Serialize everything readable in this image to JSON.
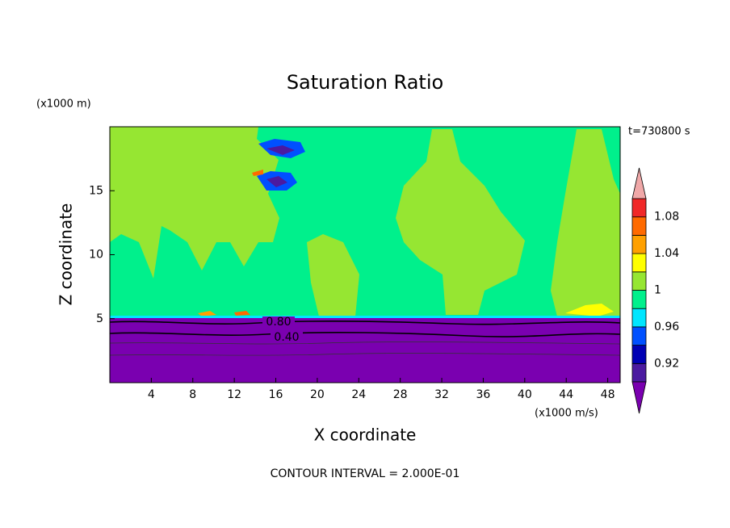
{
  "chart_data": {
    "type": "contour",
    "title": "Saturation Ratio",
    "y_unit_label": "(x1000 m)",
    "x_unit_label": "(x1000 m/s)",
    "time_label": "t=730800 s",
    "xlabel": "X coordinate",
    "ylabel": "Z coordinate",
    "footer": "CONTOUR INTERVAL = 2.000E-01",
    "xlim": [
      0,
      49.2
    ],
    "ylim": [
      0,
      20
    ],
    "xticks": [
      4,
      8,
      12,
      16,
      20,
      24,
      28,
      32,
      36,
      40,
      44,
      48
    ],
    "yticks": [
      5,
      10,
      15
    ],
    "levels": [
      0.9,
      0.92,
      0.94,
      0.96,
      0.98,
      1,
      1.02,
      1.04,
      1.06,
      1.08,
      1.1
    ],
    "level_colors": [
      "#4b1aa0",
      "#0000b4",
      "#0050ff",
      "#00e6ff",
      "#00f08c",
      "#96e632",
      "#ffff00",
      "#ffa000",
      "#ff6a00",
      "#f02828"
    ],
    "under_color": "#7a00b0",
    "over_color": "#f0a8a8",
    "colorbar_ticks": [
      0.92,
      0.96,
      1,
      1.04,
      1.08
    ],
    "contour_labels": [
      {
        "value": 0.8,
        "label": "0.80"
      },
      {
        "value": 0.4,
        "label": "0.40"
      }
    ]
  }
}
